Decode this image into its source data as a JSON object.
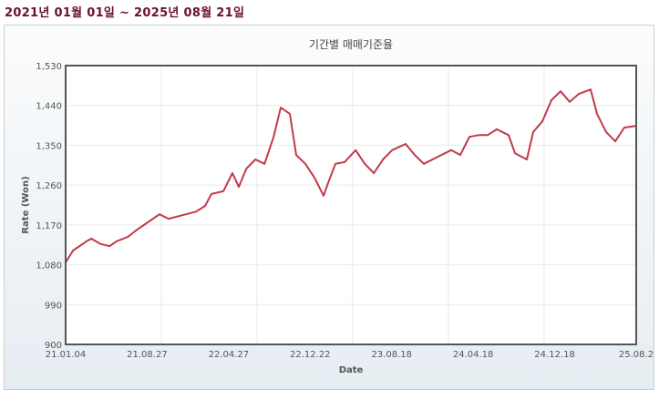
{
  "header": {
    "date_range": "2021년 01월 01일  ~  2025년 08월 21일"
  },
  "chart_data": {
    "type": "line",
    "title": "기간별 매매기준율",
    "xlabel": "Date",
    "ylabel": "Rate (Won)",
    "ylim": [
      900,
      1530
    ],
    "yticks": [
      "1,530",
      "1,440",
      "1,350",
      "1,260",
      "1,170",
      "1,080",
      "990",
      "900"
    ],
    "xticks": [
      "21.01.04",
      "21.08.27",
      "22.04.27",
      "22.12.22",
      "23.08.18",
      "24.04.18",
      "24.12.18",
      "25.08.2"
    ],
    "xrange": [
      "2021-01-04",
      "2025-08-21"
    ],
    "grid": true,
    "line_color": "#c23a4a",
    "series": [
      {
        "x": [
          "2021-01-04",
          "2021-01-26",
          "2021-03-07",
          "2021-03-21",
          "2021-04-17",
          "2021-05-14",
          "2021-06-04",
          "2021-07-07",
          "2021-08-03",
          "2021-09-12",
          "2021-10-09",
          "2021-11-05",
          "2021-12-16",
          "2022-01-25",
          "2022-02-21",
          "2022-03-12",
          "2022-04-16",
          "2022-05-13",
          "2022-06-01",
          "2022-06-23",
          "2022-07-20",
          "2022-08-16",
          "2022-09-12",
          "2022-10-03",
          "2022-10-30",
          "2022-11-18",
          "2022-12-15",
          "2023-01-11",
          "2023-02-07",
          "2023-02-21",
          "2023-03-14",
          "2023-04-10",
          "2023-05-13",
          "2023-06-09",
          "2023-07-06",
          "2023-08-02",
          "2023-08-29",
          "2023-10-08",
          "2023-11-04",
          "2023-12-01",
          "2024-01-11",
          "2024-02-20",
          "2024-03-18",
          "2024-04-14",
          "2024-05-11",
          "2024-06-07",
          "2024-07-04",
          "2024-08-08",
          "2024-08-27",
          "2024-10-01",
          "2024-10-20",
          "2024-11-16",
          "2024-12-13",
          "2025-01-09",
          "2025-02-05",
          "2025-03-04",
          "2025-04-08",
          "2025-04-27",
          "2025-05-24",
          "2025-06-20",
          "2025-07-17",
          "2025-08-21"
        ],
        "values": [
          1085,
          1112,
          1133,
          1139,
          1127,
          1122,
          1133,
          1143,
          1159,
          1180,
          1194,
          1184,
          1192,
          1200,
          1213,
          1240,
          1246,
          1287,
          1256,
          1297,
          1318,
          1308,
          1369,
          1435,
          1421,
          1328,
          1308,
          1277,
          1236,
          1266,
          1308,
          1312,
          1339,
          1308,
          1287,
          1318,
          1339,
          1353,
          1328,
          1308,
          1324,
          1339,
          1328,
          1369,
          1373,
          1373,
          1386,
          1373,
          1332,
          1318,
          1380,
          1404,
          1452,
          1472,
          1448,
          1466,
          1476,
          1421,
          1380,
          1359,
          1390,
          1394
        ]
      }
    ]
  }
}
